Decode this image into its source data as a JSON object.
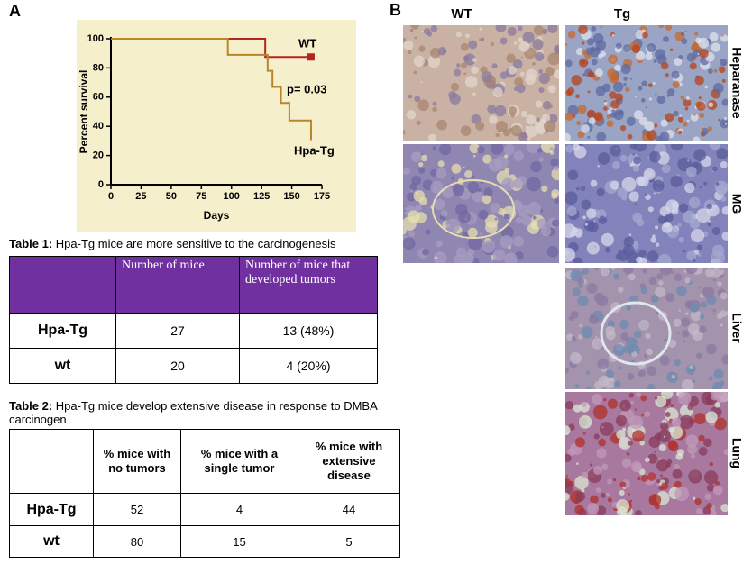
{
  "chart_data": {
    "type": "line",
    "panel_label": "A",
    "ylabel": "Percent survival",
    "xlabel": "Days",
    "xlim": [
      0,
      175
    ],
    "xticks": [
      0,
      25,
      50,
      75,
      100,
      125,
      150,
      175
    ],
    "ylim": [
      0,
      100
    ],
    "yticks": [
      0,
      20,
      40,
      60,
      80,
      100
    ],
    "series": [
      {
        "name": "WT",
        "color": "#b3261e",
        "marker": "square",
        "x": [
          0,
          128,
          166
        ],
        "values": [
          100,
          87.5,
          87.5
        ]
      },
      {
        "name": "Hpa-Tg",
        "color": "#b8862b",
        "marker": "tick",
        "x": [
          0,
          97,
          130,
          134,
          141,
          148,
          158,
          166
        ],
        "values": [
          100,
          89,
          78,
          67,
          56,
          44,
          44,
          33
        ]
      }
    ],
    "annotations": [
      "p= 0.03"
    ]
  },
  "table_1": {
    "caption_label": "Table 1:",
    "caption": "Hpa-Tg mice are more sensitive to the carcinogenesis",
    "header": [
      "Number of mice",
      "Number of mice that developed tumors"
    ],
    "rows": [
      [
        "Hpa-Tg",
        "27",
        "13 (48%)"
      ],
      [
        "wt",
        "20",
        "4 (20%)"
      ]
    ]
  },
  "table_2": {
    "caption_label": "Table 2:",
    "caption": "Hpa-Tg mice develop extensive disease in response to DMBA carcinogen",
    "header": [
      "% mice with no tumors",
      "% mice with a single tumor",
      "% mice with extensive disease"
    ],
    "rows": [
      [
        "Hpa-Tg",
        "52",
        "4",
        "44"
      ],
      [
        "wt",
        "80",
        "15",
        "5"
      ]
    ]
  },
  "panel_b": {
    "label": "B",
    "columns": [
      "WT",
      "Tg"
    ],
    "rows": [
      "Heparanase",
      "MG",
      "Liver",
      "Lung"
    ]
  }
}
